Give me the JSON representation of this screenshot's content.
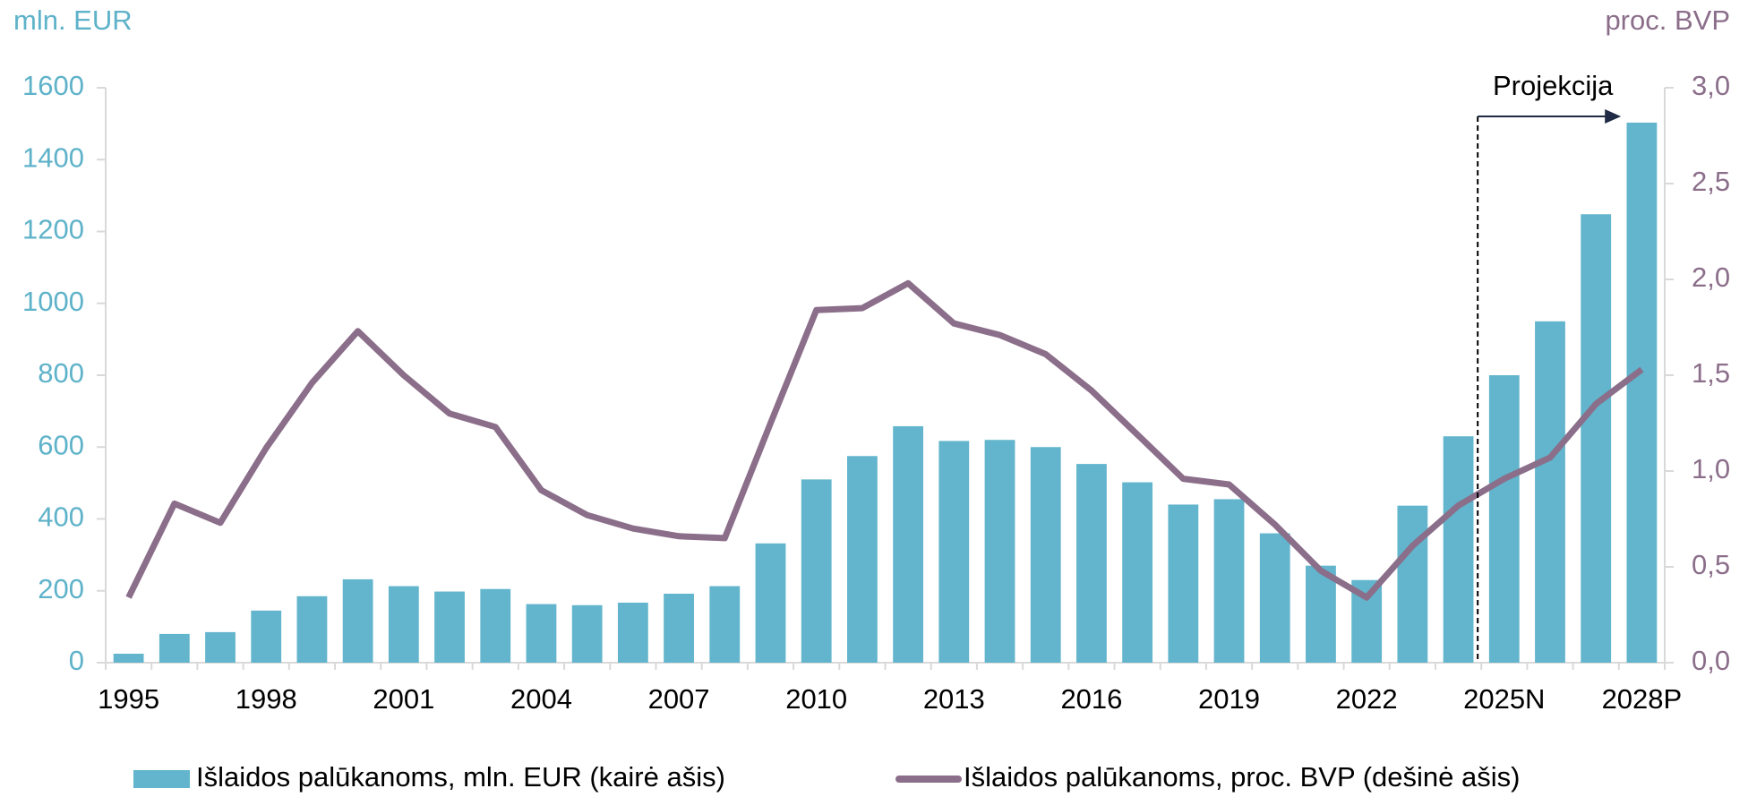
{
  "chart_data": {
    "type": "bar_line",
    "y_label": "mln. EUR",
    "y2_label": "proc. BVP",
    "annotations": [
      {
        "text": "Projekcija"
      }
    ],
    "categories": [
      "1995",
      null,
      null,
      "1998",
      null,
      null,
      "2001",
      null,
      null,
      "2004",
      null,
      null,
      "2007",
      null,
      null,
      "2010",
      null,
      null,
      "2013",
      null,
      null,
      "2016",
      null,
      null,
      "2019",
      null,
      null,
      "2022",
      null,
      null,
      "2025N",
      null,
      null,
      "2028P"
    ],
    "series": [
      {
        "name": "Išlaidos palūkanoms, mln. EUR (kairė ašis)",
        "type": "bar",
        "color": "#62b5cc",
        "values": [
          25,
          80,
          85,
          145,
          185,
          232,
          213,
          198,
          205,
          163,
          160,
          167,
          192,
          213,
          332,
          510,
          575,
          658,
          617,
          620,
          600,
          553,
          502,
          440,
          455,
          360,
          270,
          230,
          437,
          630,
          800,
          950,
          1248,
          1503
        ]
      },
      {
        "name": "Išlaidos palūkanoms, proc. BVP (dešinė ašis)",
        "type": "line",
        "axis": "y2",
        "color": "#8b6e8a",
        "values": [
          0.34,
          0.83,
          0.73,
          1.12,
          1.46,
          1.73,
          1.5,
          1.3,
          1.23,
          0.9,
          0.77,
          0.7,
          0.66,
          0.65,
          1.25,
          1.84,
          1.85,
          1.98,
          1.77,
          1.71,
          1.61,
          1.42,
          1.19,
          0.96,
          0.93,
          0.72,
          0.48,
          0.34,
          0.61,
          0.82,
          0.96,
          1.07,
          1.35,
          1.53
        ]
      }
    ],
    "ylim": [
      0,
      1600
    ],
    "yticks": [
      0,
      200,
      400,
      600,
      800,
      1000,
      1200,
      1400,
      1600
    ],
    "y2lim": [
      0,
      3
    ],
    "y2ticks": [
      {
        "value": 0,
        "label": "0,0"
      },
      {
        "value": 0.5,
        "label": "0,5"
      },
      {
        "value": 1,
        "label": "1,0"
      },
      {
        "value": 1.5,
        "label": "1,5"
      },
      {
        "value": 2,
        "label": "2,0"
      },
      {
        "value": 2.5,
        "label": "2,5"
      },
      {
        "value": 3,
        "label": "3,0"
      }
    ],
    "legend": "bottom"
  }
}
